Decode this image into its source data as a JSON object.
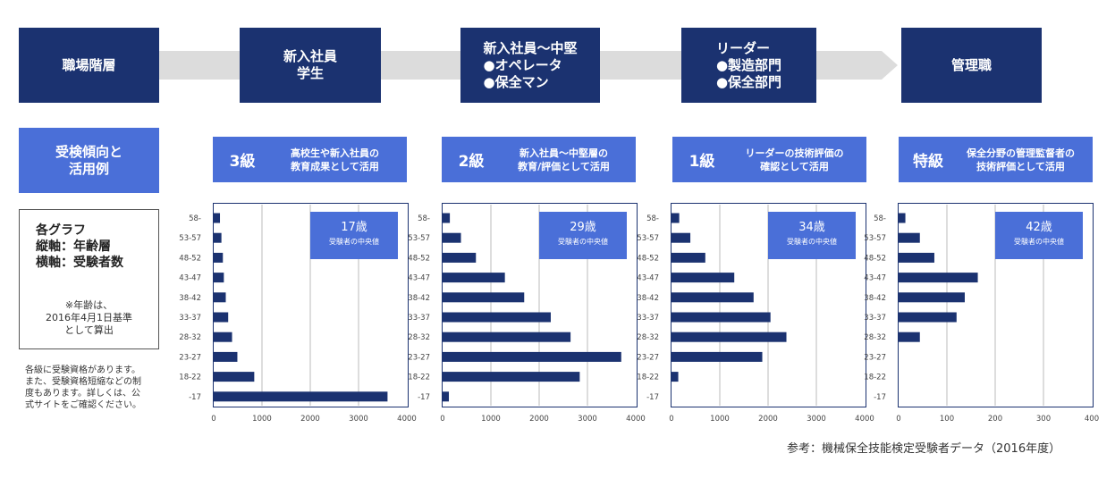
{
  "colors": {
    "navy": "#1b3270",
    "blue": "#4a6fd8",
    "arrow": "#dcdcdc"
  },
  "tiers": {
    "career_header": "職場階層",
    "items": [
      {
        "lines": [
          "新入社員",
          "学生"
        ]
      },
      {
        "lines": [
          "新入社員～中堅",
          "●オペレータ",
          "●保全マン"
        ]
      },
      {
        "lines": [
          "リーダー",
          "●製造部門",
          "●保全部門"
        ]
      },
      {
        "lines": [
          "管理職"
        ]
      }
    ]
  },
  "usage": {
    "header_lines": [
      "受検傾向と",
      "活用例"
    ],
    "grades": [
      {
        "label": "3級",
        "desc_lines": [
          "高校生や新入社員の",
          "教育成果として活用"
        ]
      },
      {
        "label": "2級",
        "desc_lines": [
          "新入社員～中堅層の",
          "教育/評価として活用"
        ]
      },
      {
        "label": "1級",
        "desc_lines": [
          "リーダーの技術評価の",
          "確認として活用"
        ]
      },
      {
        "label": "特級",
        "desc_lines": [
          "保全分野の管理監督者の",
          "技術評価として活用"
        ]
      }
    ]
  },
  "graph_note": {
    "title_lines": [
      "各グラフ",
      "縦軸：年齢層",
      "横軸：受験者数"
    ],
    "age_note_lines": [
      "※年齢は、",
      "2016年4月1日基準",
      "として算出"
    ]
  },
  "side_note_lines": [
    "各級に受験資格があります。",
    "また、受験資格短縮などの制",
    "度もあります。詳しくは、公",
    "式サイトをご確認ください。"
  ],
  "median_label": "受験者の中央値",
  "source": "参考：機械保全技能検定受験者データ（2016年度）",
  "chart_data": [
    {
      "type": "bar",
      "orientation": "horizontal",
      "title": "3級",
      "categories": [
        "58-",
        "53-57",
        "48-52",
        "43-47",
        "38-42",
        "33-37",
        "28-32",
        "23-27",
        "18-22",
        "-17"
      ],
      "values": [
        130,
        160,
        190,
        210,
        250,
        300,
        380,
        490,
        840,
        3600
      ],
      "xlim": [
        0,
        4000
      ],
      "xticks": [
        0,
        1000,
        2000,
        3000,
        4000
      ],
      "median_age": "17歳"
    },
    {
      "type": "bar",
      "orientation": "horizontal",
      "title": "2級",
      "categories": [
        "58-",
        "53-57",
        "48-52",
        "43-47",
        "38-42",
        "33-37",
        "28-32",
        "23-27",
        "18-22",
        "-17"
      ],
      "values": [
        150,
        380,
        690,
        1290,
        1690,
        2240,
        2650,
        3700,
        2840,
        130
      ],
      "xlim": [
        0,
        4000
      ],
      "xticks": [
        0,
        1000,
        2000,
        3000,
        4000
      ],
      "median_age": "29歳"
    },
    {
      "type": "bar",
      "orientation": "horizontal",
      "title": "1級",
      "categories": [
        "58-",
        "53-57",
        "48-52",
        "43-47",
        "38-42",
        "33-37",
        "28-32",
        "23-27",
        "18-22",
        "-17"
      ],
      "values": [
        160,
        390,
        700,
        1300,
        1700,
        2050,
        2380,
        1880,
        140,
        0
      ],
      "xlim": [
        0,
        4000
      ],
      "xticks": [
        0,
        1000,
        2000,
        3000,
        4000
      ],
      "median_age": "34歳"
    },
    {
      "type": "bar",
      "orientation": "horizontal",
      "title": "特級",
      "categories": [
        "58-",
        "53-57",
        "48-52",
        "43-47",
        "38-42",
        "33-37",
        "28-32",
        "23-27",
        "18-22",
        "-17"
      ],
      "values": [
        14,
        44,
        74,
        164,
        137,
        120,
        44,
        0,
        0,
        0
      ],
      "xlim": [
        0,
        400
      ],
      "xticks": [
        0,
        100,
        200,
        300,
        400
      ],
      "median_age": "42歳"
    }
  ]
}
